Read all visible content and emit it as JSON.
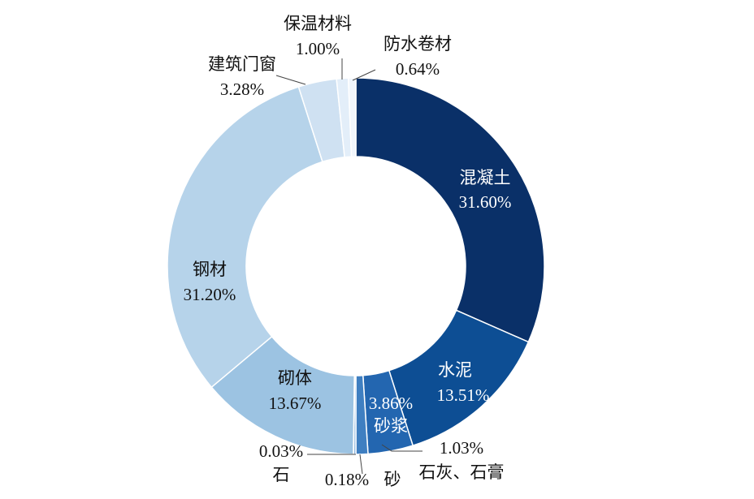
{
  "chart_data": {
    "type": "pie",
    "donut": true,
    "title": "",
    "start_angle_deg": 0,
    "direction": "clockwise",
    "slices": [
      {
        "name": "混凝土",
        "value": 31.6,
        "label": "31.60%",
        "color": "#0a3068"
      },
      {
        "name": "水泥",
        "value": 13.51,
        "label": "13.51%",
        "color": "#0d4e94"
      },
      {
        "name": "砂浆",
        "value": 3.86,
        "label": "3.86%",
        "color": "#2366b0"
      },
      {
        "name": "石灰、石膏",
        "value": 1.03,
        "label": "1.03%",
        "color": "#3f7fc1"
      },
      {
        "name": "砂",
        "value": 0.18,
        "label": "0.18%",
        "color": "#6a9fd2"
      },
      {
        "name": "石",
        "value": 0.03,
        "label": "0.03%",
        "color": "#8fb8e0"
      },
      {
        "name": "砌体",
        "value": 13.67,
        "label": "13.67%",
        "color": "#9cc3e2"
      },
      {
        "name": "钢材",
        "value": 31.2,
        "label": "31.20%",
        "color": "#b6d3ea"
      },
      {
        "name": "建筑门窗",
        "value": 3.28,
        "label": "3.28%",
        "color": "#cfe1f2"
      },
      {
        "name": "保温材料",
        "value": 1.0,
        "label": "1.00%",
        "color": "#e3eef9"
      },
      {
        "name": "防水卷材",
        "value": 0.64,
        "label": "0.64%",
        "color": "#f1f6fc"
      }
    ]
  }
}
